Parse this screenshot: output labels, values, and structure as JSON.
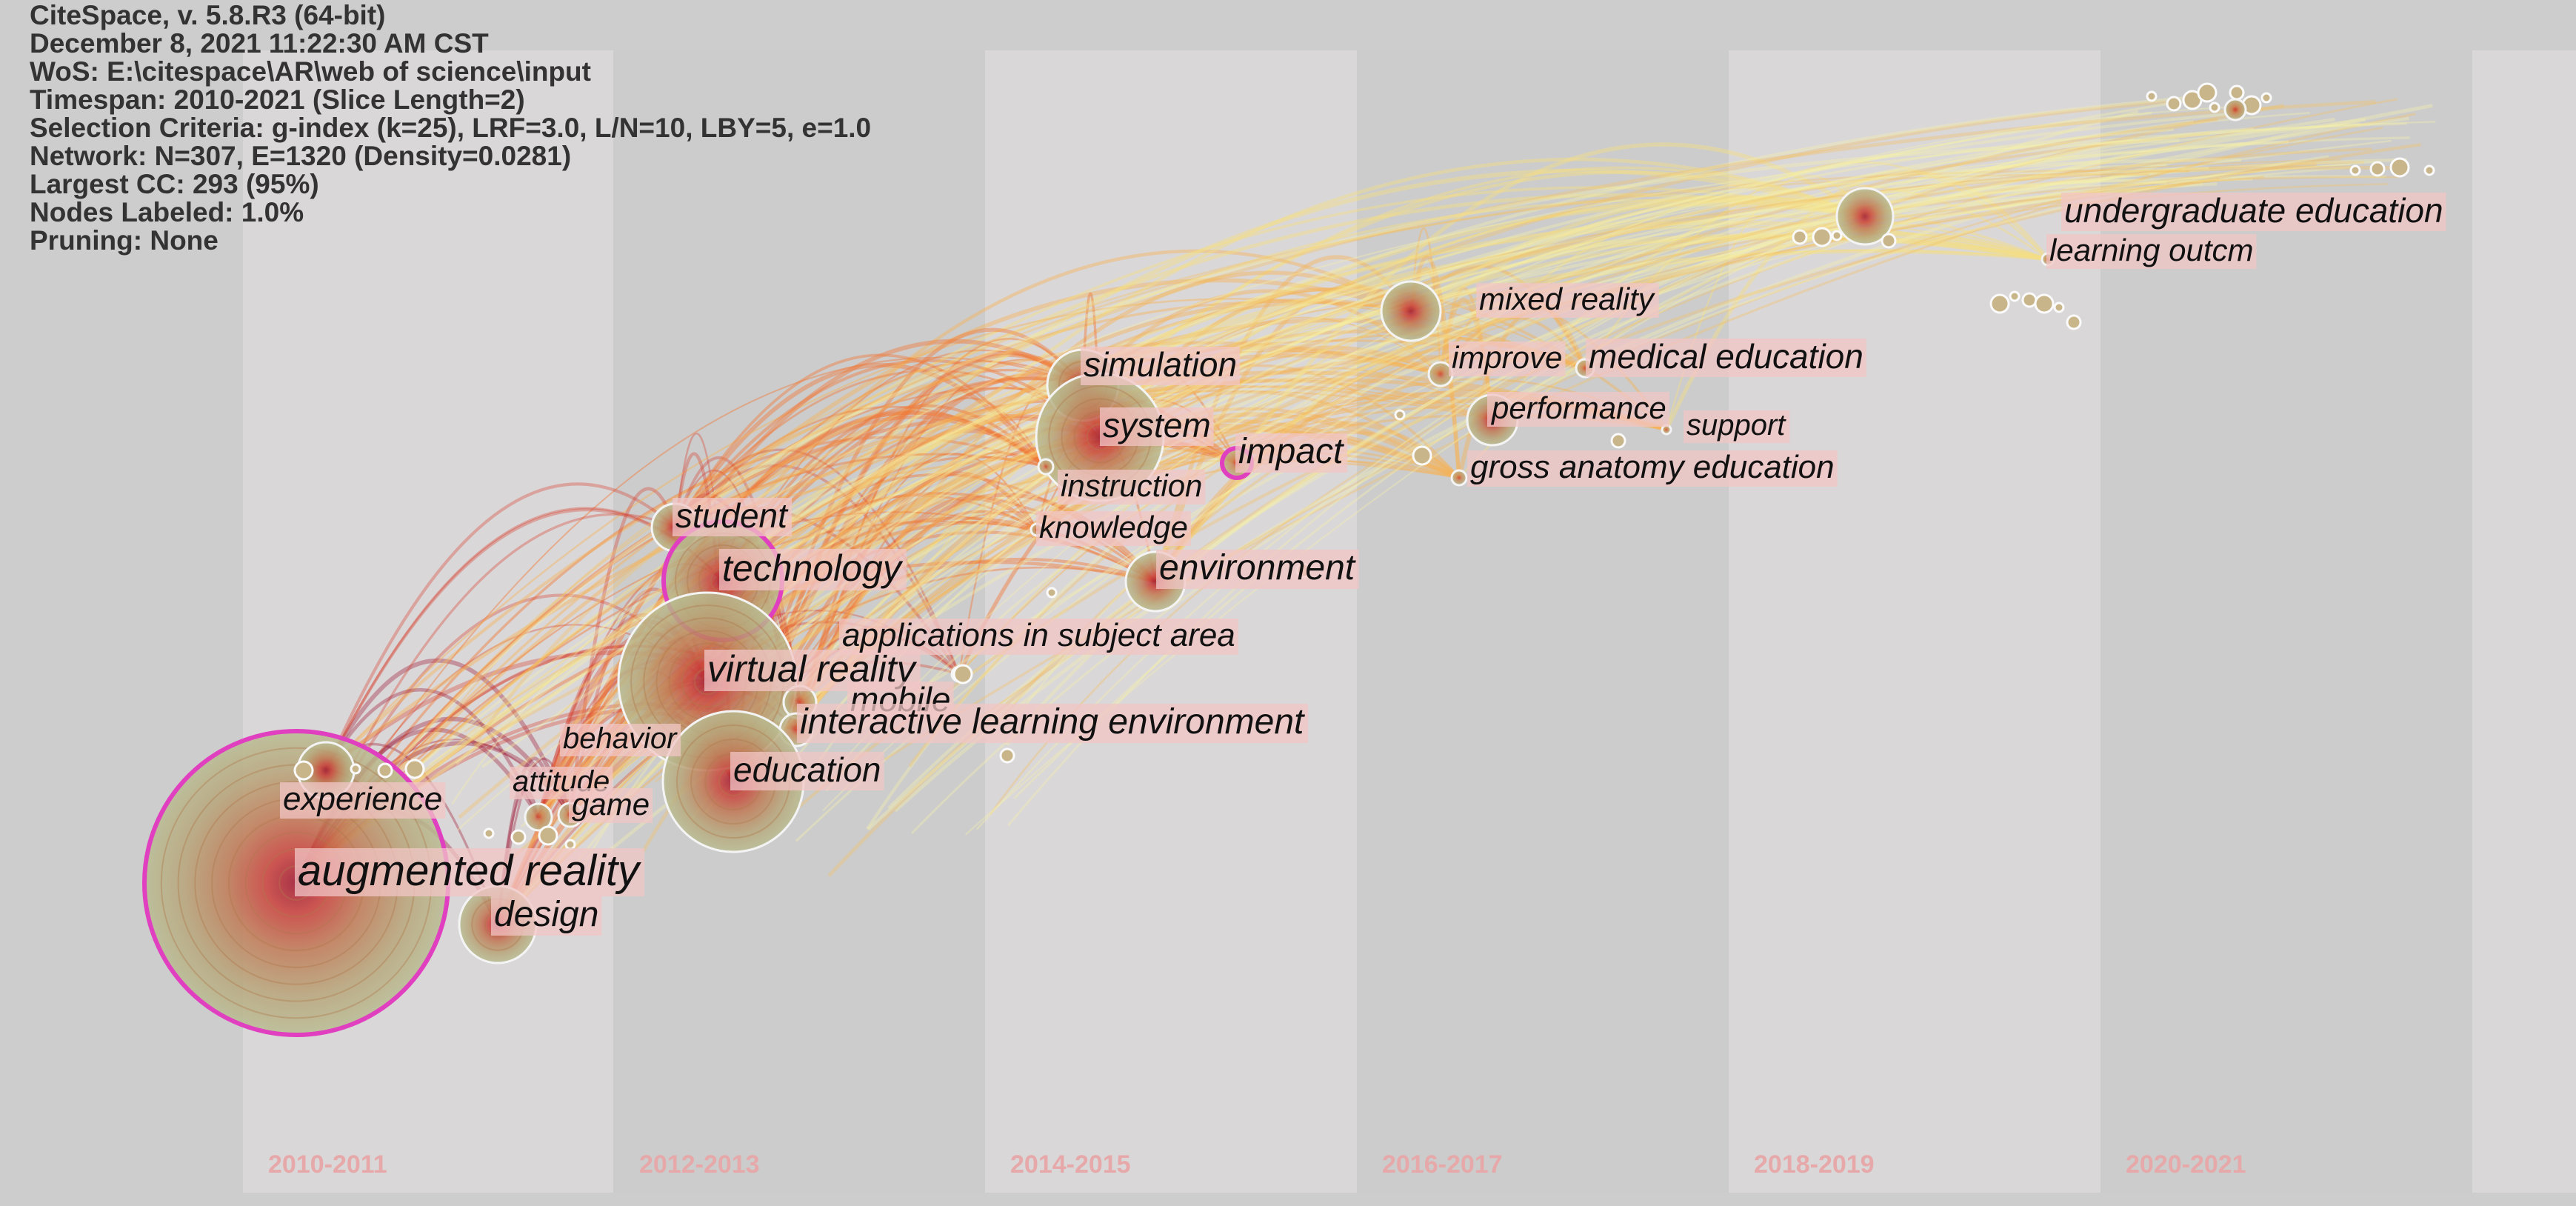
{
  "info": {
    "title": "CiteSpace, v. 5.8.R3 (64-bit)",
    "date": "December 8, 2021 11:22:30 AM CST",
    "wos": "WoS: E:\\citespace\\AR\\web of science\\input",
    "timespan": "Timespan: 2010-2021 (Slice Length=2)",
    "criteria": "Selection Criteria: g-index (k=25), LRF=3.0, L/N=10, LBY=5, e=1.0",
    "network": "Network: N=307, E=1320 (Density=0.0281)",
    "largest_cc": "Largest CC: 293 (95%)",
    "nodes_labeled": "Nodes Labeled: 1.0%",
    "pruning": "Pruning: None"
  },
  "colors": {
    "background": "#cdcdcd",
    "band": "#dadada",
    "slice_label": "#e6a8a8",
    "label_bg": "#f2c6c6",
    "label_text": "#111111",
    "node_fill": "#b7b894",
    "node_core": "#c0392b",
    "node_ring": "#e040c0",
    "edge_early": "#9a1030",
    "edge_mid": "#f07a3a",
    "edge_late": "#f5f0a0"
  },
  "slices": [
    "2010-2011",
    "2012-2013",
    "2014-2015",
    "2016-2017",
    "2018-2019",
    "2020-2021"
  ],
  "keywords": [
    {
      "id": "ar",
      "label": "augmented reality",
      "size": 5,
      "slice": 0,
      "ring": true
    },
    {
      "id": "experience",
      "label": "experience",
      "size": 2,
      "slice": 0
    },
    {
      "id": "design",
      "label": "design",
      "size": 3,
      "slice": 0
    },
    {
      "id": "attitude",
      "label": "attitude",
      "size": 1,
      "slice": 0
    },
    {
      "id": "game",
      "label": "game",
      "size": 1,
      "slice": 0
    },
    {
      "id": "behavior",
      "label": "behavior",
      "size": 1,
      "slice": 0
    },
    {
      "id": "student",
      "label": "student",
      "size": 2,
      "slice": 1
    },
    {
      "id": "technology",
      "label": "technology",
      "size": 4,
      "slice": 1,
      "ring": true
    },
    {
      "id": "vr",
      "label": "virtual reality",
      "size": 4,
      "slice": 1
    },
    {
      "id": "mobile",
      "label": "mobile",
      "size": 2,
      "slice": 1
    },
    {
      "id": "ile",
      "label": "interactive learning environment",
      "size": 2,
      "slice": 1
    },
    {
      "id": "education",
      "label": "education",
      "size": 4,
      "slice": 1
    },
    {
      "id": "apps",
      "label": "applications in subject area",
      "size": 2,
      "slice": 1
    },
    {
      "id": "simulation",
      "label": "simulation",
      "size": 3,
      "slice": 2
    },
    {
      "id": "system",
      "label": "system",
      "size": 4,
      "slice": 2
    },
    {
      "id": "impact",
      "label": "impact",
      "size": 2,
      "slice": 2,
      "ring": true
    },
    {
      "id": "instruction",
      "label": "instruction",
      "size": 1,
      "slice": 2
    },
    {
      "id": "knowledge",
      "label": "knowledge",
      "size": 1,
      "slice": 2
    },
    {
      "id": "environment",
      "label": "environment",
      "size": 3,
      "slice": 2
    },
    {
      "id": "mixed",
      "label": "mixed reality",
      "size": 3,
      "slice": 3
    },
    {
      "id": "improve",
      "label": "improve",
      "size": 1,
      "slice": 3
    },
    {
      "id": "meded",
      "label": "medical education",
      "size": 1,
      "slice": 3
    },
    {
      "id": "performance",
      "label": "performance",
      "size": 2,
      "slice": 3
    },
    {
      "id": "support",
      "label": "support",
      "size": 1,
      "slice": 3
    },
    {
      "id": "gross",
      "label": "gross anatomy education",
      "size": 1,
      "slice": 3
    },
    {
      "id": "undergrad",
      "label": "undergraduate education",
      "size": 3,
      "slice": 4
    },
    {
      "id": "outcome",
      "label": "learning outcm",
      "size": 1,
      "slice": 4
    }
  ]
}
